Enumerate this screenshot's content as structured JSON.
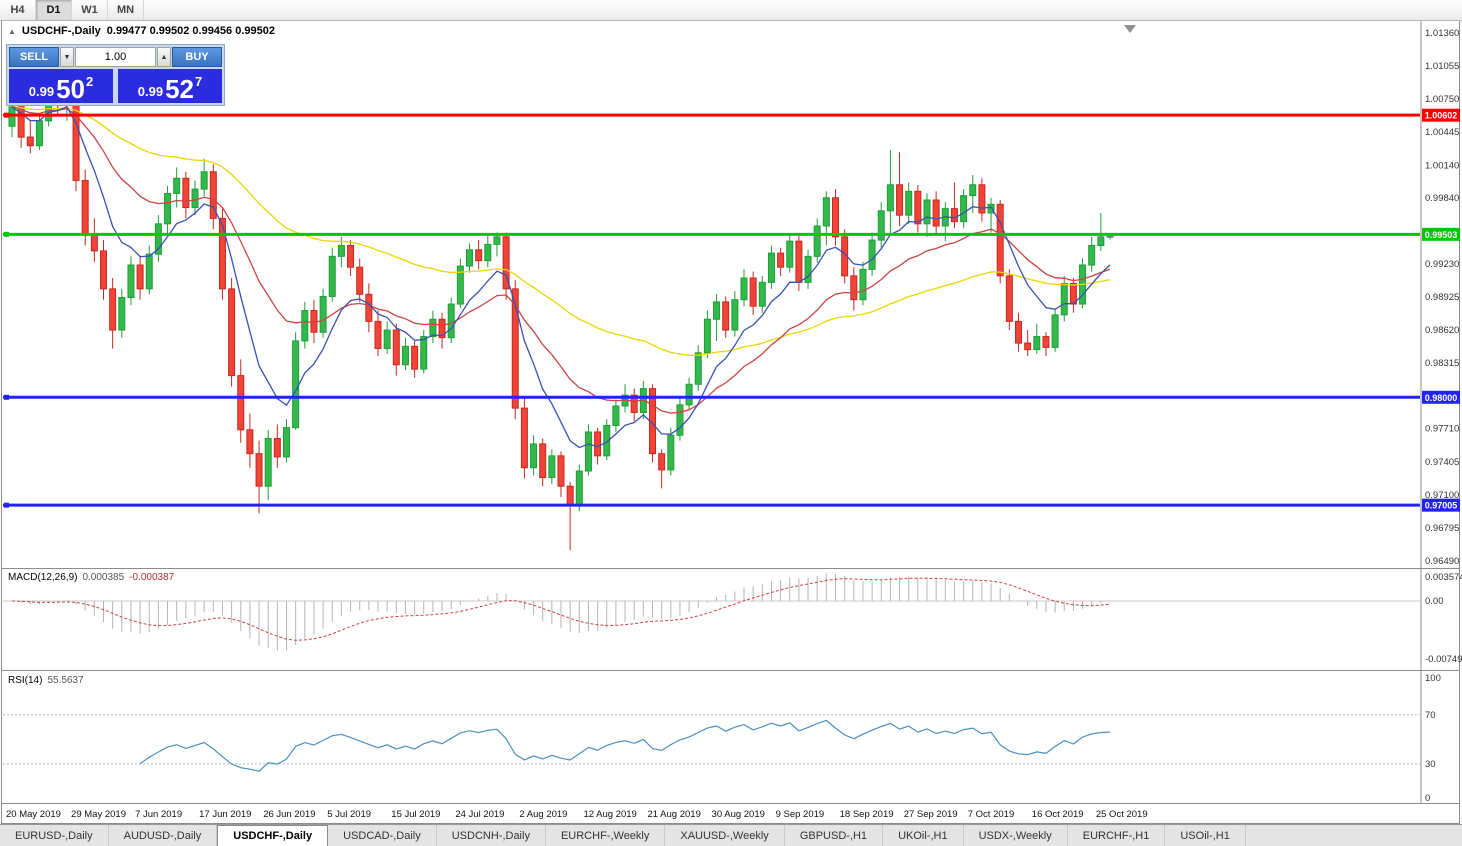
{
  "toolbar": {
    "timeframes": [
      "H4",
      "D1",
      "W1",
      "MN"
    ],
    "active": "D1"
  },
  "icons": {
    "marker": "▲",
    "vol_down": "▼",
    "vol_up": "▲",
    "shift_marker": "triangle-down"
  },
  "chart_header": {
    "title": "USDCHF-,Daily",
    "ohlc": "0.99477 0.99502 0.99456 0.99502"
  },
  "trade_panel": {
    "sell_label": "SELL",
    "buy_label": "BUY",
    "volume": "1.00",
    "sell_price": {
      "small": "0.99",
      "big": "50",
      "sup": "2"
    },
    "buy_price": {
      "small": "0.99",
      "big": "52",
      "sup": "7"
    }
  },
  "indicators": {
    "macd_title": "MACD(12,26,9)",
    "macd_value_main": "0.000385",
    "macd_value_signal": "-0.000387",
    "rsi_title": "RSI(14)",
    "rsi_value": "55.5637"
  },
  "colors": {
    "candle_up": "#32b84b",
    "candle_up_border": "#1f9e38",
    "candle_down": "#ef4437",
    "candle_down_border": "#c8281f",
    "ma_fast": "#3a50b4",
    "ma_medium": "#cc4444",
    "ma_slow": "#e6d800",
    "level_red": "#ff0000",
    "level_green": "#00c800",
    "level_blue": "#2222ff",
    "macd_hist": "#b4b4b4",
    "macd_signal": "#d04040",
    "rsi_line": "#4a8fc0",
    "axis_text": "#333333",
    "chrome": "#8c8c8c"
  },
  "chart_data": {
    "type": "candlestick",
    "symbol": "USDCHF-",
    "timeframe": "Daily",
    "ohlc_current": {
      "open": 0.99477,
      "high": 0.99502,
      "low": 0.99456,
      "close": 0.99502
    },
    "price_ticks": [
      "1.01360",
      "1.01055",
      "1.00750",
      "1.00445",
      "1.00140",
      "0.99840",
      "0.99230",
      "0.98925",
      "0.98620",
      "0.98315",
      "0.97710",
      "0.97405",
      "0.97100",
      "0.96795",
      "0.96490"
    ],
    "levels": [
      {
        "price": 1.00602,
        "label": "1.00602",
        "color": "#ff0000"
      },
      {
        "price": 0.99503,
        "label": "0.99503",
        "color": "#00c800"
      },
      {
        "price": 0.98,
        "label": "0.98000",
        "color": "#2222ff"
      },
      {
        "price": 0.97005,
        "label": "0.97005",
        "color": "#2222ff"
      }
    ],
    "x_labels": [
      "20 May 2019",
      "29 May 2019",
      "7 Jun 2019",
      "17 Jun 2019",
      "26 Jun 2019",
      "5 Jul 2019",
      "15 Jul 2019",
      "24 Jul 2019",
      "2 Aug 2019",
      "12 Aug 2019",
      "21 Aug 2019",
      "30 Aug 2019",
      "9 Sep 2019",
      "18 Sep 2019",
      "27 Sep 2019",
      "7 Oct 2019",
      "16 Oct 2019",
      "25 Oct 2019"
    ],
    "bars_per_label": 7,
    "moving_averages": [
      {
        "name": "fast",
        "period": 8,
        "color": "#3a50b4"
      },
      {
        "name": "medium",
        "period": 21,
        "color": "#cc4444"
      },
      {
        "name": "slow",
        "period": 55,
        "color": "#e6d800"
      }
    ],
    "indicator_axes": {
      "macd": {
        "params": "12,26,9",
        "axis": [
          "0.003574",
          "0.00",
          "-0.00749"
        ]
      },
      "rsi": {
        "params": "14",
        "axis": [
          "100",
          "70",
          "30",
          "0"
        ],
        "levels": [
          70,
          30
        ]
      }
    },
    "candles": [
      [
        1.005,
        1.0075,
        1.004,
        1.0068
      ],
      [
        1.0068,
        1.0078,
        1.003,
        1.004
      ],
      [
        1.004,
        1.0055,
        1.0025,
        1.0032
      ],
      [
        1.0032,
        1.006,
        1.0028,
        1.0055
      ],
      [
        1.0055,
        1.0098,
        1.005,
        1.009
      ],
      [
        1.009,
        1.01,
        1.006,
        1.007
      ],
      [
        1.007,
        1.0085,
        1.0055,
        1.008
      ],
      [
        1.008,
        1.0088,
        0.999,
        1.0
      ],
      [
        1.0,
        1.001,
        0.994,
        0.995
      ],
      [
        0.995,
        0.9965,
        0.9925,
        0.9935
      ],
      [
        0.9935,
        0.9945,
        0.989,
        0.99
      ],
      [
        0.99,
        0.991,
        0.9845,
        0.9862
      ],
      [
        0.9862,
        0.99,
        0.9855,
        0.9892
      ],
      [
        0.9892,
        0.993,
        0.9885,
        0.9922
      ],
      [
        0.9922,
        0.993,
        0.989,
        0.99
      ],
      [
        0.99,
        0.994,
        0.9895,
        0.9932
      ],
      [
        0.9932,
        0.9968,
        0.9925,
        0.996
      ],
      [
        0.996,
        0.9995,
        0.995,
        0.9988
      ],
      [
        0.9988,
        1.0012,
        0.9975,
        1.0002
      ],
      [
        1.0002,
        1.0008,
        0.9965,
        0.9975
      ],
      [
        0.9975,
        1.0,
        0.9968,
        0.9992
      ],
      [
        0.9992,
        1.002,
        0.9985,
        1.0008
      ],
      [
        1.0008,
        1.0015,
        0.9955,
        0.9965
      ],
      [
        0.9965,
        0.9975,
        0.989,
        0.99
      ],
      [
        0.99,
        0.991,
        0.981,
        0.982
      ],
      [
        0.982,
        0.9835,
        0.9758,
        0.977
      ],
      [
        0.977,
        0.9785,
        0.9735,
        0.9748
      ],
      [
        0.9748,
        0.976,
        0.9693,
        0.9718
      ],
      [
        0.9718,
        0.977,
        0.9705,
        0.9762
      ],
      [
        0.9762,
        0.9775,
        0.9735,
        0.9745
      ],
      [
        0.9745,
        0.978,
        0.974,
        0.9772
      ],
      [
        0.9772,
        0.986,
        0.977,
        0.9852
      ],
      [
        0.9852,
        0.9888,
        0.9845,
        0.988
      ],
      [
        0.988,
        0.989,
        0.985,
        0.986
      ],
      [
        0.986,
        0.99,
        0.9855,
        0.9893
      ],
      [
        0.9893,
        0.9938,
        0.9888,
        0.993
      ],
      [
        0.993,
        0.9948,
        0.992,
        0.994
      ],
      [
        0.994,
        0.9945,
        0.9912,
        0.992
      ],
      [
        0.992,
        0.9928,
        0.9888,
        0.9895
      ],
      [
        0.9895,
        0.9905,
        0.986,
        0.987
      ],
      [
        0.987,
        0.988,
        0.9838,
        0.9845
      ],
      [
        0.9845,
        0.987,
        0.984,
        0.9862
      ],
      [
        0.9862,
        0.9868,
        0.982,
        0.983
      ],
      [
        0.983,
        0.9855,
        0.9825,
        0.9847
      ],
      [
        0.9847,
        0.9852,
        0.9818,
        0.9826
      ],
      [
        0.9826,
        0.9862,
        0.9822,
        0.9856
      ],
      [
        0.9856,
        0.988,
        0.985,
        0.9872
      ],
      [
        0.9872,
        0.9878,
        0.9845,
        0.9855
      ],
      [
        0.9855,
        0.9892,
        0.985,
        0.9886
      ],
      [
        0.9886,
        0.9928,
        0.9882,
        0.9921
      ],
      [
        0.9921,
        0.9942,
        0.9915,
        0.9936
      ],
      [
        0.9936,
        0.9945,
        0.9918,
        0.9926
      ],
      [
        0.9926,
        0.995,
        0.992,
        0.9941
      ],
      [
        0.9941,
        0.9952,
        0.993,
        0.9948
      ],
      [
        0.9948,
        0.9952,
        0.989,
        0.99
      ],
      [
        0.99,
        0.9908,
        0.978,
        0.979
      ],
      [
        0.979,
        0.98,
        0.9725,
        0.9735
      ],
      [
        0.9735,
        0.9765,
        0.9728,
        0.9757
      ],
      [
        0.9757,
        0.9762,
        0.9718,
        0.9726
      ],
      [
        0.9726,
        0.9752,
        0.972,
        0.9746
      ],
      [
        0.9746,
        0.975,
        0.9708,
        0.9718
      ],
      [
        0.9718,
        0.9722,
        0.9659,
        0.97
      ],
      [
        0.97,
        0.9738,
        0.9695,
        0.9732
      ],
      [
        0.9732,
        0.9775,
        0.9728,
        0.9768
      ],
      [
        0.9768,
        0.9772,
        0.9738,
        0.9746
      ],
      [
        0.9746,
        0.978,
        0.9742,
        0.9774
      ],
      [
        0.9774,
        0.9798,
        0.9768,
        0.9792
      ],
      [
        0.9792,
        0.9812,
        0.9786,
        0.9802
      ],
      [
        0.9802,
        0.9808,
        0.9778,
        0.9786
      ],
      [
        0.9786,
        0.9815,
        0.978,
        0.9808
      ],
      [
        0.9808,
        0.9812,
        0.974,
        0.9748
      ],
      [
        0.9748,
        0.9752,
        0.9716,
        0.9733
      ],
      [
        0.9733,
        0.9772,
        0.9728,
        0.9765
      ],
      [
        0.9765,
        0.98,
        0.976,
        0.9793
      ],
      [
        0.9793,
        0.9818,
        0.9788,
        0.9812
      ],
      [
        0.9812,
        0.9848,
        0.9806,
        0.9841
      ],
      [
        0.9841,
        0.988,
        0.9836,
        0.9872
      ],
      [
        0.9872,
        0.9895,
        0.9852,
        0.9888
      ],
      [
        0.9888,
        0.9893,
        0.9855,
        0.9862
      ],
      [
        0.9862,
        0.9898,
        0.9856,
        0.989
      ],
      [
        0.989,
        0.9918,
        0.9884,
        0.991
      ],
      [
        0.991,
        0.9916,
        0.9876,
        0.9884
      ],
      [
        0.9884,
        0.9912,
        0.9878,
        0.9906
      ],
      [
        0.9906,
        0.994,
        0.99,
        0.9933
      ],
      [
        0.9933,
        0.9938,
        0.9912,
        0.992
      ],
      [
        0.992,
        0.995,
        0.9915,
        0.9944
      ],
      [
        0.9944,
        0.9949,
        0.9898,
        0.9906
      ],
      [
        0.9906,
        0.9936,
        0.99,
        0.993
      ],
      [
        0.993,
        0.9965,
        0.9924,
        0.9958
      ],
      [
        0.9958,
        0.999,
        0.994,
        0.9984
      ],
      [
        0.9984,
        0.9992,
        0.994,
        0.9948
      ],
      [
        0.9948,
        0.9955,
        0.9905,
        0.9912
      ],
      [
        0.9912,
        0.992,
        0.988,
        0.989
      ],
      [
        0.989,
        0.9925,
        0.9885,
        0.9918
      ],
      [
        0.9918,
        0.9952,
        0.9912,
        0.9945
      ],
      [
        0.9945,
        0.998,
        0.9938,
        0.9972
      ],
      [
        0.9972,
        1.0028,
        0.995,
        0.9996
      ],
      [
        0.9996,
        1.0026,
        0.9958,
        0.9968
      ],
      [
        0.9968,
        0.9998,
        0.996,
        0.999
      ],
      [
        0.999,
        0.9996,
        0.9952,
        0.996
      ],
      [
        0.996,
        0.9988,
        0.9948,
        0.9982
      ],
      [
        0.9982,
        0.999,
        0.995,
        0.9958
      ],
      [
        0.9958,
        0.998,
        0.9944,
        0.9974
      ],
      [
        0.9974,
        0.9998,
        0.9956,
        0.9962
      ],
      [
        0.9962,
        0.9992,
        0.9956,
        0.9986
      ],
      [
        0.9986,
        1.0005,
        0.997,
        0.9996
      ],
      [
        0.9996,
        1.0002,
        0.9962,
        0.997
      ],
      [
        0.997,
        0.9984,
        0.9952,
        0.9978
      ],
      [
        0.9978,
        0.9982,
        0.9905,
        0.9912
      ],
      [
        0.9912,
        0.9918,
        0.9862,
        0.987
      ],
      [
        0.987,
        0.9878,
        0.9842,
        0.985
      ],
      [
        0.985,
        0.9862,
        0.9838,
        0.9844
      ],
      [
        0.9844,
        0.9868,
        0.984,
        0.9856
      ],
      [
        0.9856,
        0.986,
        0.9838,
        0.9846
      ],
      [
        0.9846,
        0.9882,
        0.9842,
        0.9876
      ],
      [
        0.9876,
        0.9912,
        0.987,
        0.9905
      ],
      [
        0.9905,
        0.991,
        0.9878,
        0.9886
      ],
      [
        0.9886,
        0.9928,
        0.9882,
        0.9922
      ],
      [
        0.9922,
        0.9948,
        0.9916,
        0.994
      ],
      [
        0.994,
        0.997,
        0.9935,
        0.9948
      ],
      [
        0.99477,
        0.99502,
        0.99456,
        0.99502
      ]
    ]
  },
  "tabs": {
    "items": [
      "EURUSD-,Daily",
      "AUDUSD-,Daily",
      "USDCHF-,Daily",
      "USDCAD-,Daily",
      "USDCNH-,Daily",
      "EURCHF-,Weekly",
      "XAUUSD-,Weekly",
      "GBPUSD-,H1",
      "UKOil-,H1",
      "USDX-,Weekly",
      "EURCHF-,H1",
      "USOil-,H1"
    ],
    "active_index": 2
  }
}
